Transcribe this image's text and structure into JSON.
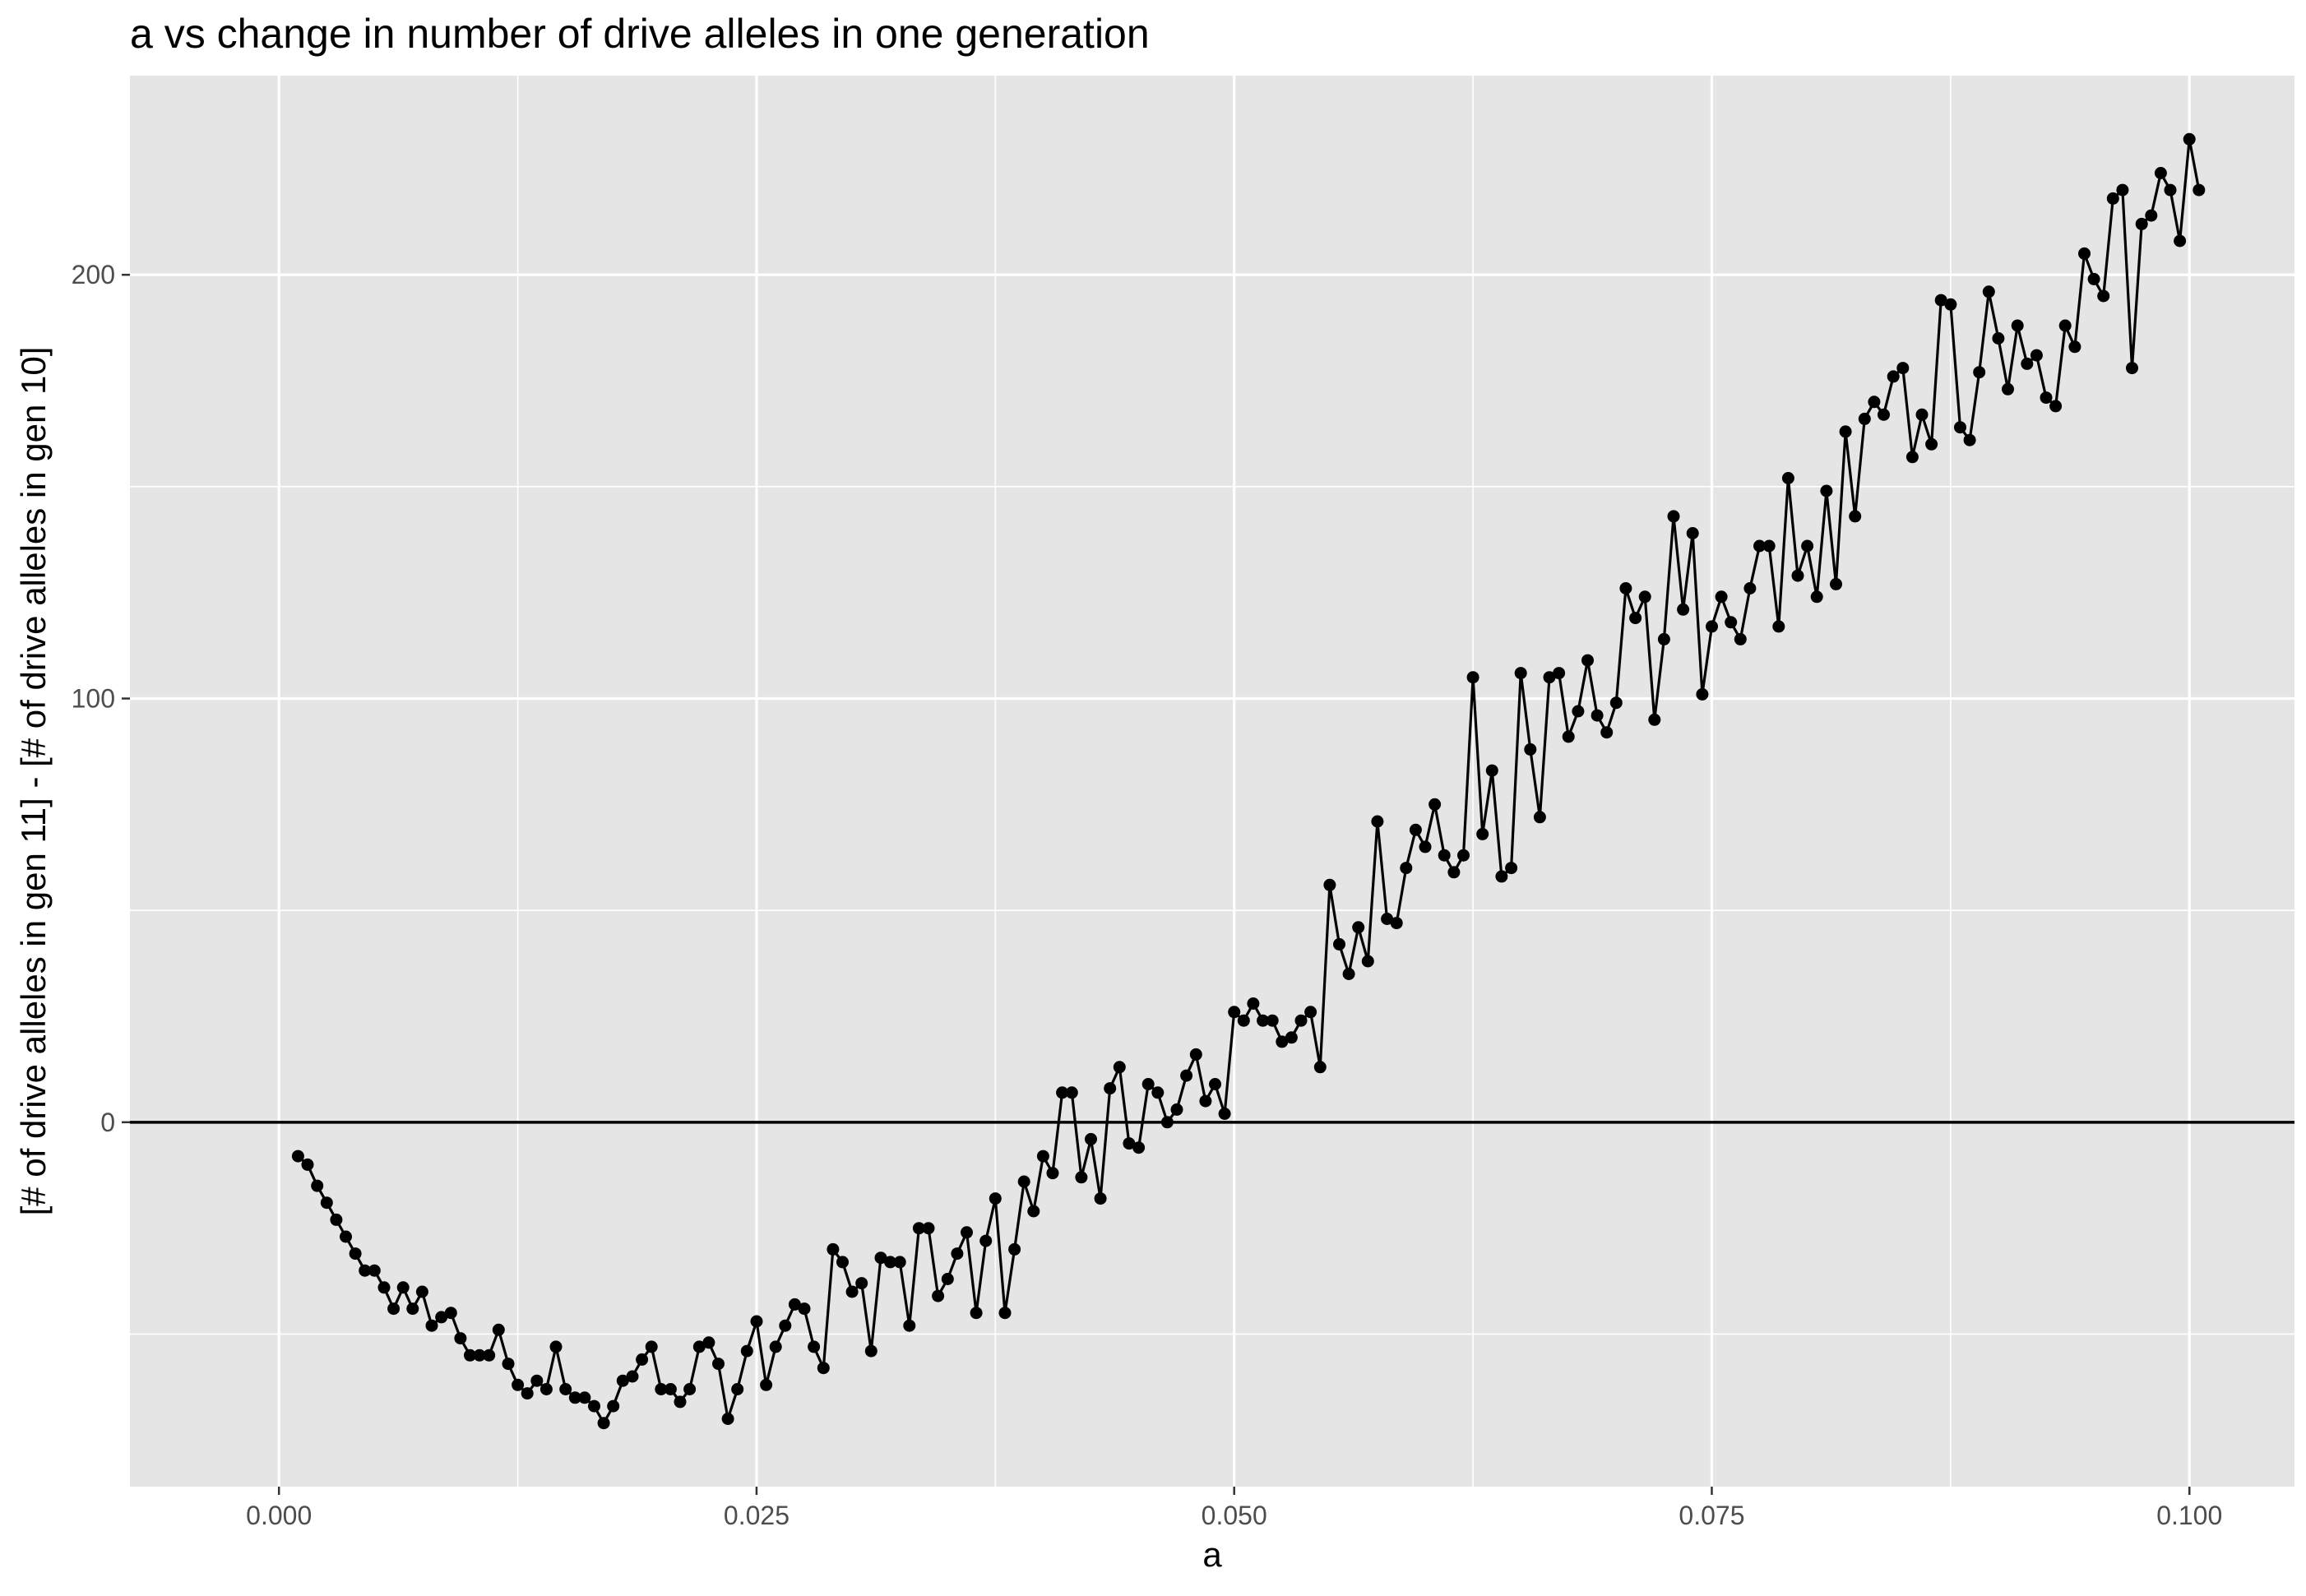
{
  "chart_data": {
    "type": "line",
    "title": "a vs change in number of drive alleles in one generation",
    "xlabel": "a",
    "ylabel": "[# of drive alleles in gen 11] - [# of drive alleles in gen 10]",
    "xlim": [
      -0.0078,
      0.1055
    ],
    "ylim": [
      -86,
      247
    ],
    "x_ticks": [
      0.0,
      0.025,
      0.05,
      0.075,
      0.1
    ],
    "x_tick_labels": [
      "0.000",
      "0.025",
      "0.050",
      "0.075",
      "0.100"
    ],
    "y_ticks": [
      0,
      100,
      200
    ],
    "y_tick_labels": [
      "0",
      "100",
      "200"
    ],
    "reference_line_y": 0,
    "grid": true,
    "legend": "none",
    "colors": {
      "panel": "#e5e5e5",
      "grid": "#ffffff",
      "series": "#000000"
    },
    "series": [
      {
        "x_start": 0.001,
        "x_step": 0.0005,
        "values": [
          -8,
          -10,
          -15,
          -19,
          -23,
          -27,
          -31,
          -35,
          -35,
          -39,
          -44,
          -39,
          -44,
          -40,
          -48,
          -46,
          -45,
          -51,
          -55,
          -55,
          -55,
          -49,
          -57,
          -62,
          -64,
          -61,
          -63,
          -53,
          -63,
          -65,
          -65,
          -67,
          -71,
          -67,
          -61,
          -60,
          -56,
          -53,
          -63,
          -63,
          -66,
          -63,
          -53,
          -52,
          -57,
          -70,
          -63,
          -54,
          -47,
          -62,
          -53,
          -48,
          -43,
          -44,
          -53,
          -58,
          -30,
          -33,
          -40,
          -38,
          -54,
          -32,
          -33,
          -33,
          -48,
          -25,
          -25,
          -41,
          -37,
          -31,
          -26,
          -45,
          -28,
          -18,
          -45,
          -30,
          -14,
          -21,
          -8,
          -12,
          7,
          7,
          -13,
          -4,
          -18,
          8,
          13,
          -5,
          -6,
          9,
          7,
          0,
          3,
          11,
          16,
          5,
          9,
          2,
          26,
          24,
          28,
          24,
          24,
          19,
          20,
          24,
          26,
          13,
          56,
          42,
          35,
          46,
          38,
          71,
          48,
          47,
          60,
          69,
          65,
          75,
          63,
          59,
          63,
          105,
          68,
          83,
          58,
          60,
          106,
          88,
          72,
          105,
          106,
          91,
          97,
          109,
          96,
          92,
          99,
          126,
          119,
          124,
          95,
          114,
          143,
          121,
          139,
          101,
          117,
          124,
          118,
          114,
          126,
          136,
          136,
          117,
          152,
          129,
          136,
          124,
          149,
          127,
          163,
          143,
          166,
          170,
          167,
          176,
          178,
          157,
          167,
          160,
          194,
          193,
          164,
          161,
          177,
          196,
          185,
          173,
          188,
          179,
          181,
          171,
          169,
          188,
          183,
          205,
          199,
          195,
          218,
          220,
          178,
          212,
          214,
          224,
          220,
          208,
          232,
          220
        ]
      }
    ]
  }
}
